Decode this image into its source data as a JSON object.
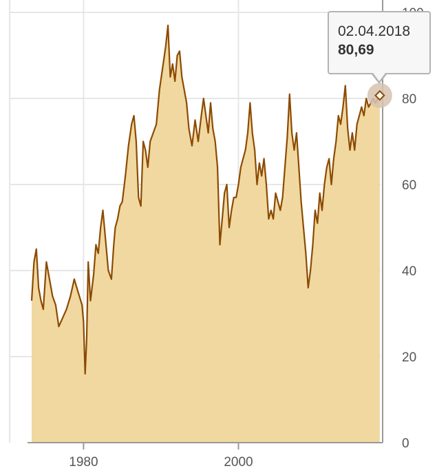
{
  "chart_data": {
    "type": "area",
    "title": "",
    "xlabel": "",
    "ylabel": "",
    "xlim": [
      1973.3,
      2018.35
    ],
    "ylim": [
      0,
      100
    ],
    "x_ticks": [
      1980,
      2000
    ],
    "y_ticks": [
      0,
      20,
      40,
      60,
      80,
      100
    ],
    "y_axis_position": "right",
    "grid": true,
    "series": [
      {
        "x": [
          1973.3,
          1973.6,
          1973.9,
          1974.2,
          1974.5,
          1974.8,
          1975.2,
          1975.6,
          1976.0,
          1976.4,
          1976.8,
          1977.3,
          1977.8,
          1978.3,
          1978.8,
          1979.3,
          1979.8,
          1980.0,
          1980.2,
          1980.4,
          1980.6,
          1980.9,
          1981.3,
          1981.6,
          1981.9,
          1982.2,
          1982.5,
          1982.8,
          1983.2,
          1983.6,
          1983.9,
          1984.1,
          1984.4,
          1984.7,
          1985.0,
          1985.4,
          1985.8,
          1986.2,
          1986.5,
          1986.8,
          1987.1,
          1987.4,
          1987.7,
          1988.0,
          1988.3,
          1988.6,
          1989.0,
          1989.4,
          1989.8,
          1990.2,
          1990.6,
          1990.9,
          1991.2,
          1991.5,
          1991.8,
          1992.1,
          1992.4,
          1992.7,
          1993.0,
          1993.3,
          1993.6,
          1994.0,
          1994.4,
          1994.8,
          1995.2,
          1995.5,
          1995.8,
          1996.1,
          1996.4,
          1996.7,
          1997.0,
          1997.3,
          1997.6,
          1997.9,
          1998.2,
          1998.5,
          1998.8,
          1999.1,
          1999.4,
          1999.7,
          2000.0,
          2000.3,
          2000.6,
          2000.9,
          2001.2,
          2001.5,
          2001.8,
          2002.1,
          2002.4,
          2002.7,
          2003.0,
          2003.3,
          2003.6,
          2003.9,
          2004.2,
          2004.5,
          2004.8,
          2005.1,
          2005.4,
          2005.7,
          2006.0,
          2006.3,
          2006.6,
          2006.9,
          2007.2,
          2007.5,
          2007.8,
          2008.1,
          2008.4,
          2008.7,
          2009.0,
          2009.3,
          2009.6,
          2009.9,
          2010.2,
          2010.5,
          2010.8,
          2011.1,
          2011.4,
          2011.7,
          2012.0,
          2012.3,
          2012.6,
          2012.9,
          2013.2,
          2013.5,
          2013.8,
          2014.1,
          2014.4,
          2014.7,
          2015.0,
          2015.3,
          2015.6,
          2015.9,
          2016.2,
          2016.5,
          2016.8,
          2017.1,
          2017.4,
          2017.7,
          2018.0,
          2018.25
        ],
        "values": [
          33,
          42,
          45,
          36,
          33,
          31,
          42,
          38,
          34,
          32,
          27,
          29,
          31,
          34,
          38,
          35,
          32,
          28,
          16,
          24,
          42,
          33,
          39,
          46,
          44,
          50,
          54,
          48,
          40,
          38,
          46,
          50,
          52,
          55,
          56,
          62,
          69,
          74,
          76,
          70,
          57,
          55,
          70,
          68,
          64,
          70,
          72,
          74,
          82,
          87,
          92,
          97,
          85,
          88,
          84,
          90,
          91,
          85,
          82,
          79,
          73,
          69,
          75,
          70,
          76,
          80,
          76,
          72,
          79,
          73,
          70,
          64,
          46,
          52,
          58,
          60,
          50,
          54,
          57,
          57,
          60,
          64,
          66,
          68,
          72,
          79,
          72,
          68,
          60,
          65,
          62,
          66,
          60,
          52,
          54,
          52,
          58,
          56,
          54,
          57,
          64,
          71,
          81,
          72,
          68,
          72,
          64,
          56,
          50,
          44,
          36,
          40,
          46,
          54,
          51,
          58,
          54,
          60,
          64,
          66,
          60,
          66,
          70,
          76,
          74,
          78,
          83,
          73,
          68,
          72,
          68,
          74,
          76,
          78,
          76,
          80,
          78,
          79,
          80,
          79,
          80,
          80.69
        ]
      }
    ],
    "colors": {
      "line": "#8c4a00",
      "area": "#f0d8a0",
      "grid": "#e6e6e6",
      "axis": "#999999",
      "marker_halo": "#d7c2b0"
    },
    "tooltip": {
      "date": "02.04.2018",
      "value": "80,69"
    }
  }
}
